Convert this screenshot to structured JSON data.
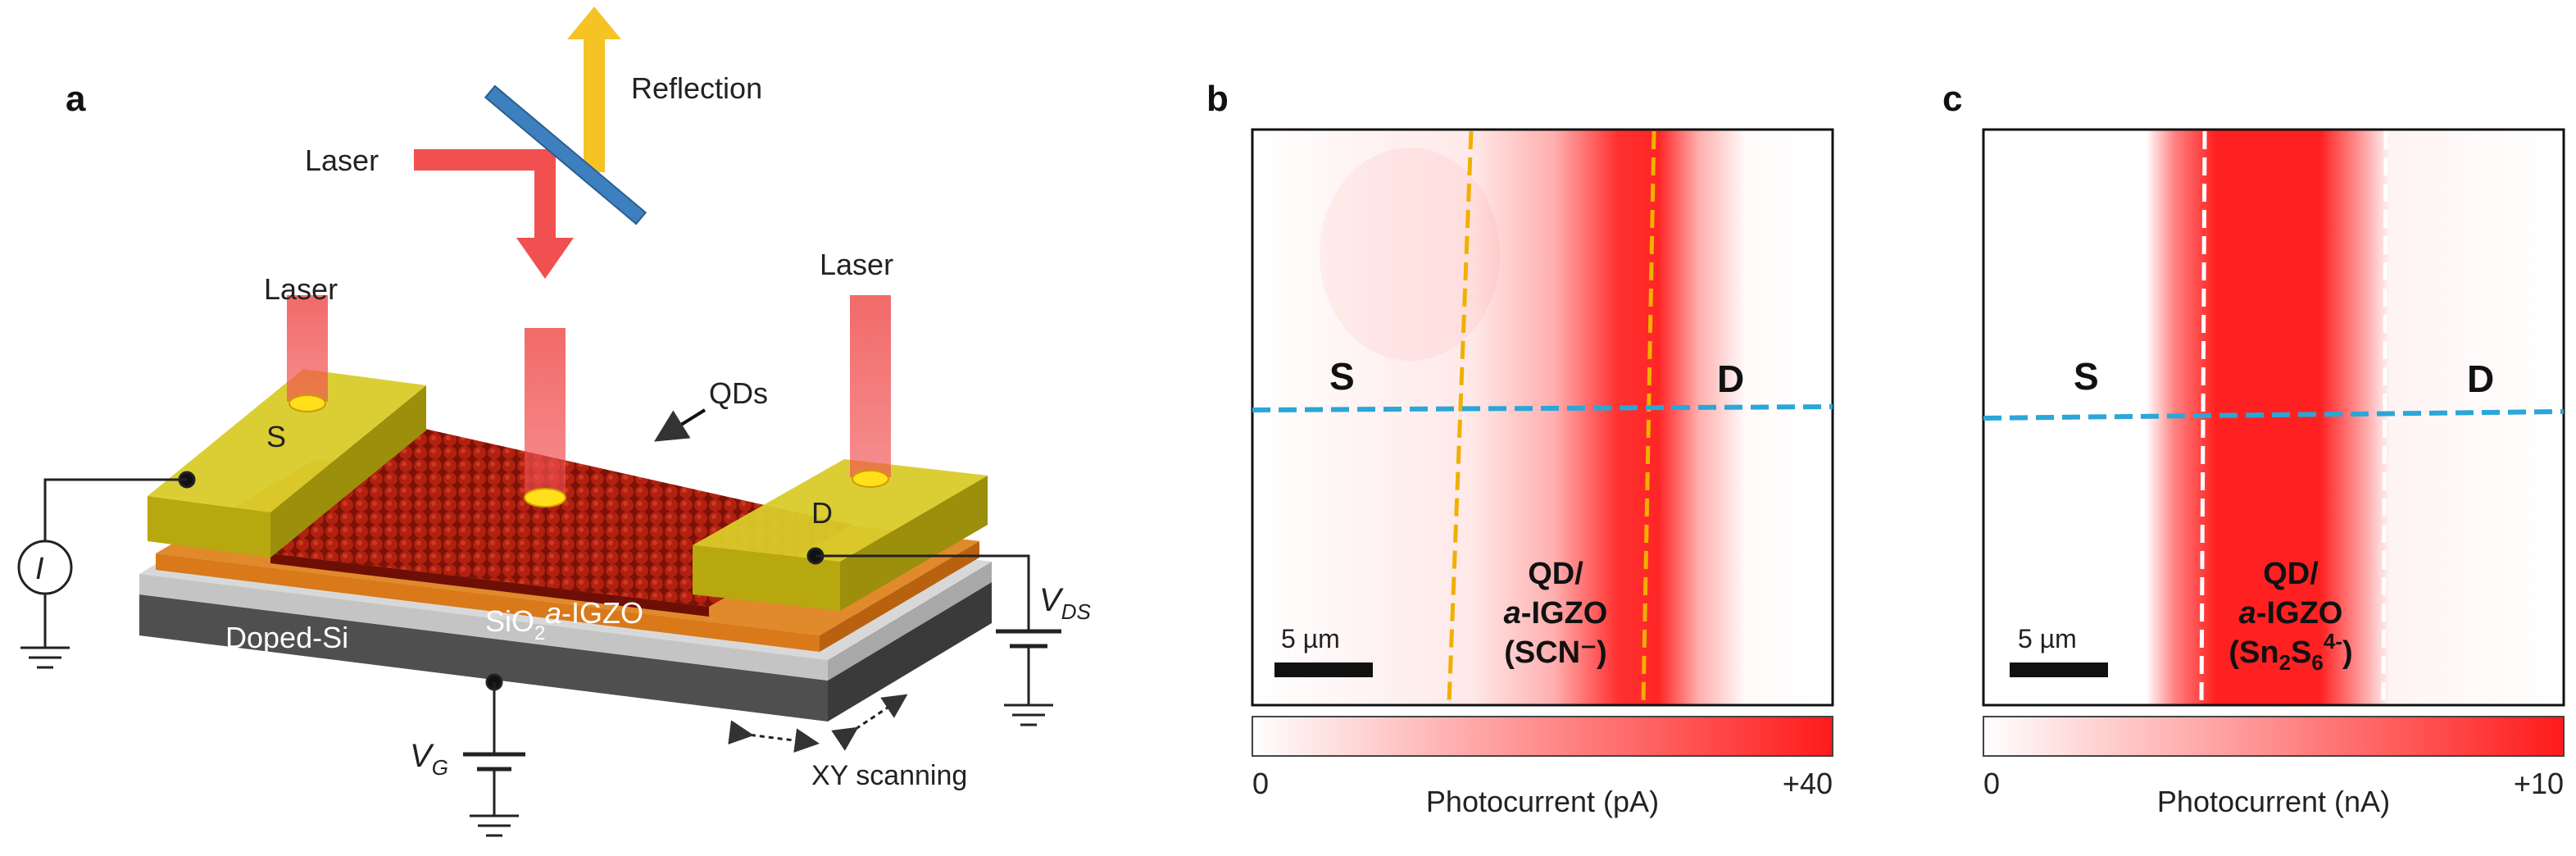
{
  "panel_a": {
    "label": "a",
    "reflection": "Reflection",
    "laser_top": "Laser",
    "laser_left": "Laser",
    "laser_right": "Laser",
    "qds": "QDs",
    "source": "S",
    "drain": "D",
    "sio2_main": "SiO",
    "sio2_sub": "2",
    "igzo_italic": "a",
    "igzo_rest": "-IGZO",
    "doped_si": "Doped-Si",
    "ammeter": "I",
    "vds_main": "V",
    "vds_sub": "DS",
    "vg_main": "V",
    "vg_sub": "G",
    "xy_scanning": "XY scanning"
  },
  "panel_b": {
    "label": "b",
    "source": "S",
    "drain": "D",
    "channel_line1": "QD/",
    "channel_line2_italic": "a",
    "channel_line2_rest": "-IGZO",
    "channel_line3": "(SCN⁻)",
    "scalebar": "5 µm",
    "colorbar_min": "0",
    "colorbar_max": "+40",
    "colorbar_label": "Photocurrent (pA)",
    "edge_color": "#f0b000"
  },
  "panel_c": {
    "label": "c",
    "source": "S",
    "drain": "D",
    "channel_line1": "QD/",
    "channel_line2_italic": "a",
    "channel_line2_rest": "-IGZO",
    "channel_line3_open": "(Sn",
    "channel_line3_sub1": "2",
    "channel_line3_mid": "S",
    "channel_line3_sub2": "6",
    "channel_line3_sup": "4-",
    "channel_line3_close": ")",
    "scalebar": "5 µm",
    "colorbar_min": "0",
    "colorbar_max": "+10",
    "colorbar_label": "Photocurrent (nA)",
    "edge_color": "#ffffff"
  },
  "colors": {
    "laser": "#f05050",
    "gold": "#c9bc12",
    "qd": "#a01a0a",
    "igzo": "#d9791a",
    "sio2": "#bfbfbf",
    "silicon": "#555555",
    "scan_line": "#2ba6d8",
    "photocurrent": "#ff1a1a"
  }
}
